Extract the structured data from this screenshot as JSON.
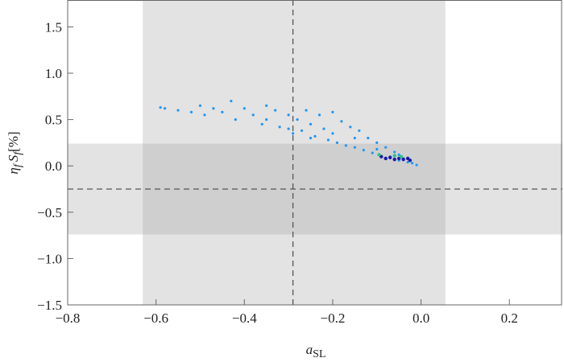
{
  "chart_data": {
    "type": "scatter",
    "xlabel": [
      "a",
      "SL"
    ],
    "ylabel": [
      "η",
      "f",
      "S",
      "f",
      "[%]"
    ],
    "xlim": [
      -0.8,
      0.32
    ],
    "ylim": [
      -1.5,
      1.79
    ],
    "xticks": [
      {
        "value": -0.8,
        "label": "−0.8"
      },
      {
        "value": -0.6,
        "label": "−0.6"
      },
      {
        "value": -0.4,
        "label": "−0.4"
      },
      {
        "value": -0.2,
        "label": "−0.2"
      },
      {
        "value": 0,
        "label": "0.0"
      },
      0.2
    ],
    "yticks": [
      {
        "value": -1.5,
        "label": "−1.5"
      },
      {
        "value": -1,
        "label": "−1.0"
      },
      {
        "value": -0.5,
        "label": "−0.5"
      },
      {
        "value": 0,
        "label": "0.0"
      },
      0.5,
      {
        "value": 1,
        "label": "1.0"
      },
      1.5
    ],
    "x_band": [
      -0.63,
      0.055
    ],
    "y_band": [
      -0.74,
      0.24
    ],
    "x_ref": -0.29,
    "y_ref": -0.25,
    "band_color": "#e3e3e3",
    "overlap_color": "#cfcfcf",
    "series": [
      {
        "color": "#2196f3",
        "x": [
          -0.59,
          -0.58,
          -0.55,
          -0.52,
          -0.5,
          -0.49,
          -0.47,
          -0.45,
          -0.43,
          -0.42,
          -0.4,
          -0.38,
          -0.36,
          -0.35,
          -0.33,
          -0.32,
          -0.3,
          -0.3,
          -0.29,
          -0.28,
          -0.27,
          -0.26,
          -0.25,
          -0.24,
          -0.23,
          -0.22,
          -0.21,
          -0.2,
          -0.2,
          -0.19,
          -0.18,
          -0.17,
          -0.16,
          -0.15,
          -0.14,
          -0.13,
          -0.12,
          -0.11,
          -0.1,
          -0.09,
          -0.08,
          -0.07,
          -0.06,
          -0.05,
          -0.04,
          -0.03,
          -0.02,
          -0.01,
          -0.25,
          -0.15,
          -0.1,
          -0.35,
          -0.05
        ],
        "values": [
          0.63,
          0.62,
          0.6,
          0.58,
          0.65,
          0.55,
          0.62,
          0.58,
          0.7,
          0.5,
          0.62,
          0.55,
          0.45,
          0.65,
          0.6,
          0.42,
          0.4,
          0.55,
          0.35,
          0.5,
          0.38,
          0.6,
          0.45,
          0.32,
          0.55,
          0.4,
          0.28,
          0.58,
          0.35,
          0.25,
          0.48,
          0.22,
          0.42,
          0.2,
          0.38,
          0.17,
          0.3,
          0.14,
          0.25,
          0.1,
          0.2,
          0.1,
          0.15,
          0.06,
          0.08,
          0.04,
          0.03,
          0.01,
          0.3,
          0.3,
          0.18,
          0.5,
          0.12
        ]
      },
      {
        "color": "#1a1aa8",
        "x": [
          -0.09,
          -0.08,
          -0.07,
          -0.06,
          -0.05,
          -0.04,
          -0.03,
          -0.025
        ],
        "values": [
          0.1,
          0.08,
          0.09,
          0.07,
          0.08,
          0.07,
          0.08,
          0.06
        ]
      },
      {
        "color": "#2ec27e",
        "x": [
          -0.095,
          -0.06,
          -0.045
        ],
        "values": [
          0.12,
          0.11,
          0.1
        ]
      }
    ]
  }
}
